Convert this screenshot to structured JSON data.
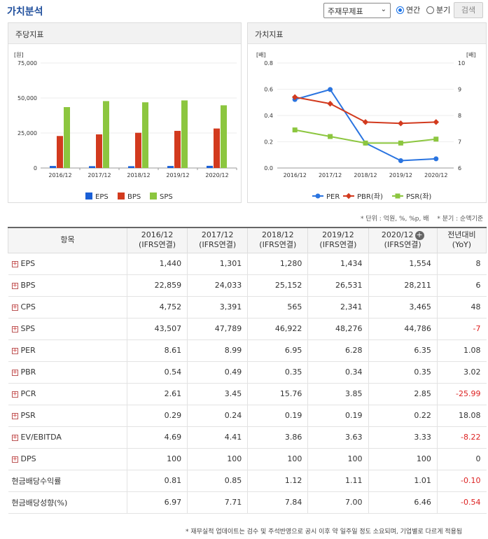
{
  "header": {
    "title": "가치분석",
    "select_value": "주재무제표",
    "radio_annual": "연간",
    "radio_quarter": "분기",
    "search_label": "검색"
  },
  "left_panel": {
    "title": "주당지표"
  },
  "right_panel": {
    "title": "가치지표"
  },
  "chart_data": [
    {
      "type": "bar",
      "title": "주당지표",
      "categories": [
        "2016/12",
        "2017/12",
        "2018/12",
        "2019/12",
        "2020/12"
      ],
      "series": [
        {
          "name": "EPS",
          "color": "#1a5fd6",
          "values": [
            1440,
            1301,
            1280,
            1434,
            1554
          ]
        },
        {
          "name": "BPS",
          "color": "#d23a1e",
          "values": [
            22859,
            24033,
            25152,
            26531,
            28211
          ]
        },
        {
          "name": "SPS",
          "color": "#8cc63f",
          "values": [
            43507,
            47789,
            46922,
            48276,
            44786
          ]
        }
      ],
      "ylabel": "[원]",
      "yticks": [
        "0",
        "25,000",
        "50,000",
        "75,000"
      ],
      "ylim": [
        0,
        75000
      ]
    },
    {
      "type": "line",
      "title": "가치지표",
      "categories": [
        "2016/12",
        "2017/12",
        "2018/12",
        "2019/12",
        "2020/12"
      ],
      "series": [
        {
          "name": "PER",
          "axis": "right",
          "color": "#2a74e0",
          "values": [
            8.61,
            8.99,
            6.95,
            6.28,
            6.35
          ]
        },
        {
          "name": "PBR(좌)",
          "axis": "left",
          "color": "#d23a1e",
          "values": [
            0.54,
            0.49,
            0.35,
            0.34,
            0.35
          ]
        },
        {
          "name": "PSR(좌)",
          "axis": "left",
          "color": "#8cc63f",
          "values": [
            0.29,
            0.24,
            0.19,
            0.19,
            0.22
          ]
        }
      ],
      "ylabel_left": "[배]",
      "ylabel_right": "[배]",
      "yticks_left": [
        "0.0",
        "0.2",
        "0.4",
        "0.6",
        "0.8"
      ],
      "yticks_right": [
        "6",
        "7",
        "8",
        "9",
        "10"
      ],
      "ylim_left": [
        0,
        0.8
      ],
      "ylim_right": [
        6,
        10
      ]
    }
  ],
  "unit_note": "* 단위 : 억원, %, %p, 배 　* 분기 : 순액기준",
  "table": {
    "col_item": "항목",
    "columns": [
      {
        "year": "2016/12",
        "basis": "(IFRS연결)"
      },
      {
        "year": "2017/12",
        "basis": "(IFRS연결)"
      },
      {
        "year": "2018/12",
        "basis": "(IFRS연결)"
      },
      {
        "year": "2019/12",
        "basis": "(IFRS연결)"
      },
      {
        "year": "2020/12",
        "basis": "(IFRS연결)"
      }
    ],
    "col_yoy": "전년대비",
    "col_yoy_sub": "(YoY)",
    "rows": [
      {
        "name": "EPS",
        "values": [
          "1,440",
          "1,301",
          "1,280",
          "1,434",
          "1,554"
        ],
        "yoy": "8",
        "expand": true,
        "neg": false
      },
      {
        "name": "BPS",
        "values": [
          "22,859",
          "24,033",
          "25,152",
          "26,531",
          "28,211"
        ],
        "yoy": "6",
        "expand": true,
        "neg": false
      },
      {
        "name": "CPS",
        "values": [
          "4,752",
          "3,391",
          "565",
          "2,341",
          "3,465"
        ],
        "yoy": "48",
        "expand": true,
        "neg": false
      },
      {
        "name": "SPS",
        "values": [
          "43,507",
          "47,789",
          "46,922",
          "48,276",
          "44,786"
        ],
        "yoy": "-7",
        "expand": true,
        "neg": true
      },
      {
        "name": "PER",
        "values": [
          "8.61",
          "8.99",
          "6.95",
          "6.28",
          "6.35"
        ],
        "yoy": "1.08",
        "expand": true,
        "neg": false
      },
      {
        "name": "PBR",
        "values": [
          "0.54",
          "0.49",
          "0.35",
          "0.34",
          "0.35"
        ],
        "yoy": "3.02",
        "expand": true,
        "neg": false
      },
      {
        "name": "PCR",
        "values": [
          "2.61",
          "3.45",
          "15.76",
          "3.85",
          "2.85"
        ],
        "yoy": "-25.99",
        "expand": true,
        "neg": true
      },
      {
        "name": "PSR",
        "values": [
          "0.29",
          "0.24",
          "0.19",
          "0.19",
          "0.22"
        ],
        "yoy": "18.08",
        "expand": true,
        "neg": false
      },
      {
        "name": "EV/EBITDA",
        "values": [
          "4.69",
          "4.41",
          "3.86",
          "3.63",
          "3.33"
        ],
        "yoy": "-8.22",
        "expand": true,
        "neg": true
      },
      {
        "name": "DPS",
        "values": [
          "100",
          "100",
          "100",
          "100",
          "100"
        ],
        "yoy": "0",
        "expand": true,
        "neg": false
      },
      {
        "name": "현금배당수익률",
        "values": [
          "0.81",
          "0.85",
          "1.12",
          "1.11",
          "1.01"
        ],
        "yoy": "-0.10",
        "expand": false,
        "neg": true
      },
      {
        "name": "현금배당성향(%)",
        "values": [
          "6.97",
          "7.71",
          "7.84",
          "7.00",
          "6.46"
        ],
        "yoy": "-0.54",
        "expand": false,
        "neg": true
      }
    ]
  },
  "footnote": "* 재무실적 업데이트는 검수 및 주석반영으로 공시 이후 약 일주일 정도 소요되며, 기업별로 다르게 적용됨"
}
